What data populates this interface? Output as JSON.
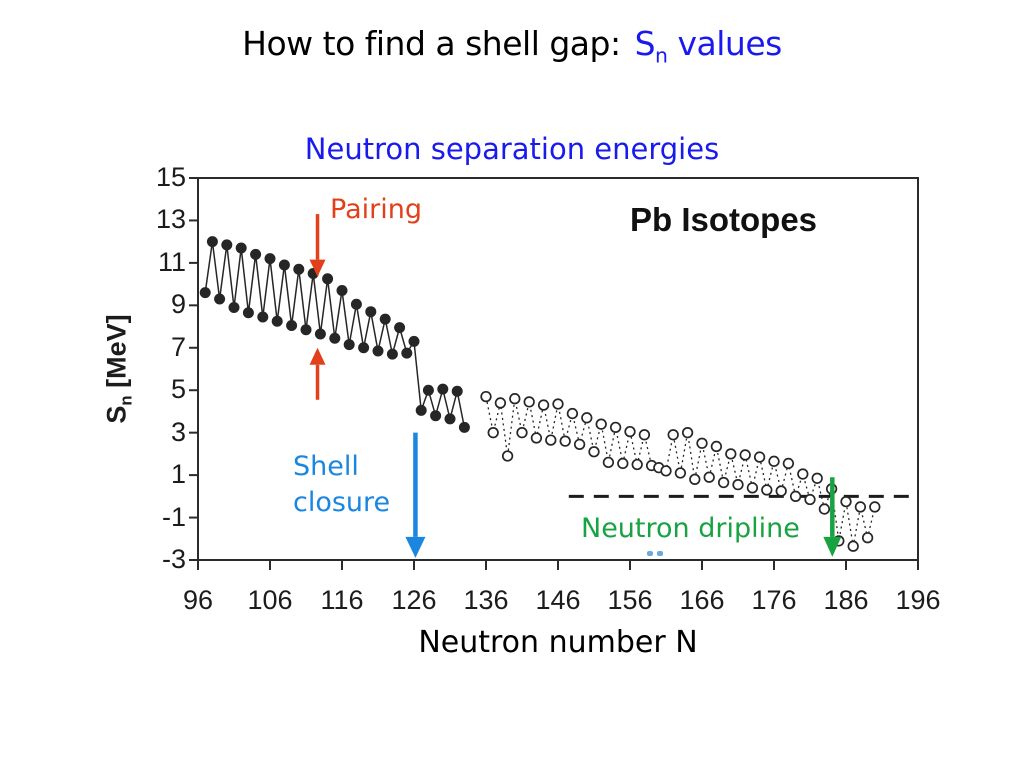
{
  "title": {
    "prefix": "How to find a shell gap:",
    "sn_main": "S",
    "sn_sub": "n",
    "suffix": " values"
  },
  "chart": {
    "subtitle": "Neutron separation energies",
    "corner_label": "Pb Isotopes",
    "x_axis_label": "Neutron number N",
    "y_axis_label_main": "S",
    "y_axis_label_sub": "n",
    "y_axis_label_unit": " [MeV]"
  },
  "annotations": {
    "pairing": "Pairing",
    "shell_line1": "Shell",
    "shell_line2": "closure",
    "dripline": "Neutron dripline"
  },
  "colors": {
    "title_accent_blue": "#1a1aee",
    "subtitle_blue": "#1a1aee",
    "pairing_red": "#e2401b",
    "shell_closure_blue": "#1b86e0",
    "dripline_green": "#18a342",
    "data_black": "#262626",
    "axis_black": "#2b2b2b"
  },
  "chart_data": {
    "type": "line",
    "title": "Neutron separation energies",
    "xlabel": "Neutron number N",
    "ylabel": "Sn [MeV]",
    "xlim": [
      96,
      196
    ],
    "ylim": [
      -3,
      15
    ],
    "x_ticks": [
      96,
      106,
      116,
      126,
      136,
      146,
      156,
      166,
      176,
      186,
      196
    ],
    "y_ticks": [
      15,
      13,
      11,
      9,
      7,
      5,
      3,
      1,
      -1,
      -3
    ],
    "grid": false,
    "legend": "none",
    "zero_line": {
      "y": 0,
      "style": "dashed",
      "x_start": 147.5,
      "x_end": 196
    },
    "series": [
      {
        "name": "measured Sn (filled circles, solid line)",
        "marker": "filled-circle",
        "line": "solid",
        "points": [
          [
            97,
            9.6
          ],
          [
            98,
            12.0
          ],
          [
            99,
            9.3
          ],
          [
            100,
            11.85
          ],
          [
            101,
            8.9
          ],
          [
            102,
            11.7
          ],
          [
            103,
            8.65
          ],
          [
            104,
            11.4
          ],
          [
            105,
            8.45
          ],
          [
            106,
            11.2
          ],
          [
            107,
            8.25
          ],
          [
            108,
            10.9
          ],
          [
            109,
            8.05
          ],
          [
            110,
            10.7
          ],
          [
            111,
            7.85
          ],
          [
            112,
            10.5
          ],
          [
            113,
            7.65
          ],
          [
            114,
            10.25
          ],
          [
            115,
            7.45
          ],
          [
            116,
            9.7
          ],
          [
            117,
            7.15
          ],
          [
            118,
            9.05
          ],
          [
            119,
            7.0
          ],
          [
            120,
            8.7
          ],
          [
            121,
            6.85
          ],
          [
            122,
            8.35
          ],
          [
            123,
            6.7
          ],
          [
            124,
            7.95
          ],
          [
            125,
            6.75
          ],
          [
            126,
            7.3
          ],
          [
            127,
            4.05
          ],
          [
            128,
            5.0
          ],
          [
            129,
            3.8
          ],
          [
            130,
            5.05
          ],
          [
            131,
            3.65
          ],
          [
            132,
            4.95
          ],
          [
            133,
            3.25
          ]
        ]
      },
      {
        "name": "predicted Sn (open circles, dotted line)",
        "marker": "open-circle",
        "line": "dotted",
        "points": [
          [
            136,
            4.7
          ],
          [
            137,
            3.0
          ],
          [
            138,
            4.4
          ],
          [
            139,
            1.9
          ],
          [
            140,
            4.6
          ],
          [
            141,
            3.0
          ],
          [
            142,
            4.45
          ],
          [
            143,
            2.75
          ],
          [
            144,
            4.3
          ],
          [
            145,
            2.65
          ],
          [
            146,
            4.35
          ],
          [
            147,
            2.6
          ],
          [
            148,
            3.9
          ],
          [
            149,
            2.45
          ],
          [
            150,
            3.7
          ],
          [
            151,
            2.1
          ],
          [
            152,
            3.4
          ],
          [
            153,
            1.6
          ],
          [
            154,
            3.25
          ],
          [
            155,
            1.55
          ],
          [
            156,
            3.05
          ],
          [
            157,
            1.5
          ],
          [
            158,
            2.9
          ],
          [
            159,
            1.45
          ],
          [
            160,
            1.35
          ],
          [
            161,
            1.2
          ],
          [
            162,
            2.9
          ],
          [
            163,
            1.1
          ],
          [
            164,
            3.0
          ],
          [
            165,
            0.8
          ],
          [
            166,
            2.5
          ],
          [
            167,
            0.9
          ],
          [
            168,
            2.35
          ],
          [
            169,
            0.65
          ],
          [
            170,
            2.0
          ],
          [
            171,
            0.55
          ],
          [
            172,
            1.95
          ],
          [
            173,
            0.4
          ],
          [
            174,
            1.85
          ],
          [
            175,
            0.3
          ],
          [
            176,
            1.65
          ],
          [
            177,
            0.25
          ],
          [
            178,
            1.55
          ],
          [
            179,
            0.0
          ],
          [
            180,
            1.05
          ],
          [
            181,
            -0.15
          ],
          [
            182,
            0.85
          ],
          [
            183,
            -0.6
          ],
          [
            184,
            0.35
          ],
          [
            185,
            -2.1
          ],
          [
            186,
            -0.25
          ],
          [
            187,
            -2.35
          ],
          [
            188,
            -0.5
          ],
          [
            189,
            -1.95
          ],
          [
            190,
            -0.5
          ]
        ]
      }
    ],
    "arrows": [
      {
        "id": "pairing-arrow-down",
        "color_key": "pairing_red",
        "x": 112.6,
        "y_tail": 13.3,
        "y_tip": 10.35,
        "head_w": 8,
        "head_l": 17,
        "shaft_w": 3.5
      },
      {
        "id": "pairing-arrow-up",
        "color_key": "pairing_red",
        "x": 112.6,
        "y_tail": 4.55,
        "y_tip": 7.0,
        "head_w": 8,
        "head_l": 17,
        "shaft_w": 3.5
      },
      {
        "id": "shell-closure-arrow",
        "color_key": "shell_closure_blue",
        "x": 126.2,
        "y_tail": 3.0,
        "y_tip": -2.9,
        "head_w": 10,
        "head_l": 21,
        "shaft_w": 4.5
      },
      {
        "id": "dripline-arrow",
        "color_key": "dripline_green",
        "x": 184.1,
        "y_tail": 0.9,
        "y_tip": -2.85,
        "head_w": 9,
        "head_l": 20,
        "shaft_w": 4.5
      }
    ]
  }
}
